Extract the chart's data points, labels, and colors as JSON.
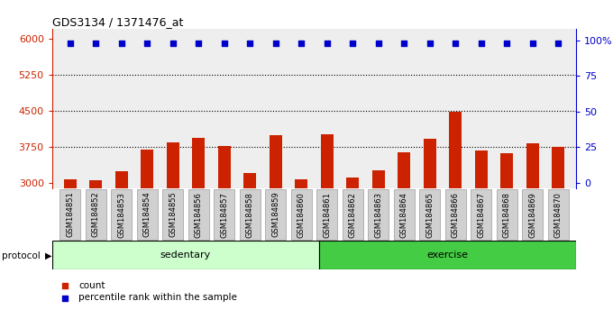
{
  "title": "GDS3134 / 1371476_at",
  "samples": [
    "GSM184851",
    "GSM184852",
    "GSM184853",
    "GSM184854",
    "GSM184855",
    "GSM184856",
    "GSM184857",
    "GSM184858",
    "GSM184859",
    "GSM184860",
    "GSM184861",
    "GSM184862",
    "GSM184863",
    "GSM184864",
    "GSM184865",
    "GSM184866",
    "GSM184867",
    "GSM184868",
    "GSM184869",
    "GSM184870"
  ],
  "bar_values": [
    3080,
    3060,
    3250,
    3700,
    3850,
    3950,
    3780,
    3220,
    4000,
    3080,
    4020,
    3130,
    3270,
    3640,
    3920,
    4480,
    3680,
    3620,
    3830,
    3750
  ],
  "percentile_values": [
    98,
    98,
    98,
    98,
    98,
    98,
    98,
    98,
    98,
    98,
    98,
    98,
    98,
    98,
    98,
    98,
    98,
    98,
    98,
    98
  ],
  "bar_color": "#cc2200",
  "percentile_color": "#0000cc",
  "sedentary_count": 10,
  "exercise_count": 10,
  "sedentary_color": "#ccffcc",
  "exercise_color": "#44cc44",
  "protocol_label": "protocol",
  "sedentary_label": "sedentary",
  "exercise_label": "exercise",
  "ylim_left": [
    2900,
    6200
  ],
  "yticks_left": [
    3000,
    3750,
    4500,
    5250,
    6000
  ],
  "ylim_right": [
    -4,
    108
  ],
  "yticks_right": [
    0,
    25,
    50,
    75,
    100
  ],
  "yright_labels": [
    "0",
    "25",
    "50",
    "75",
    "100%"
  ],
  "hlines": [
    3750,
    4500,
    5250
  ],
  "legend_count_label": "count",
  "legend_percentile_label": "percentile rank within the sample",
  "background_color": "#ffffff",
  "plot_bg_color": "#eeeeee"
}
